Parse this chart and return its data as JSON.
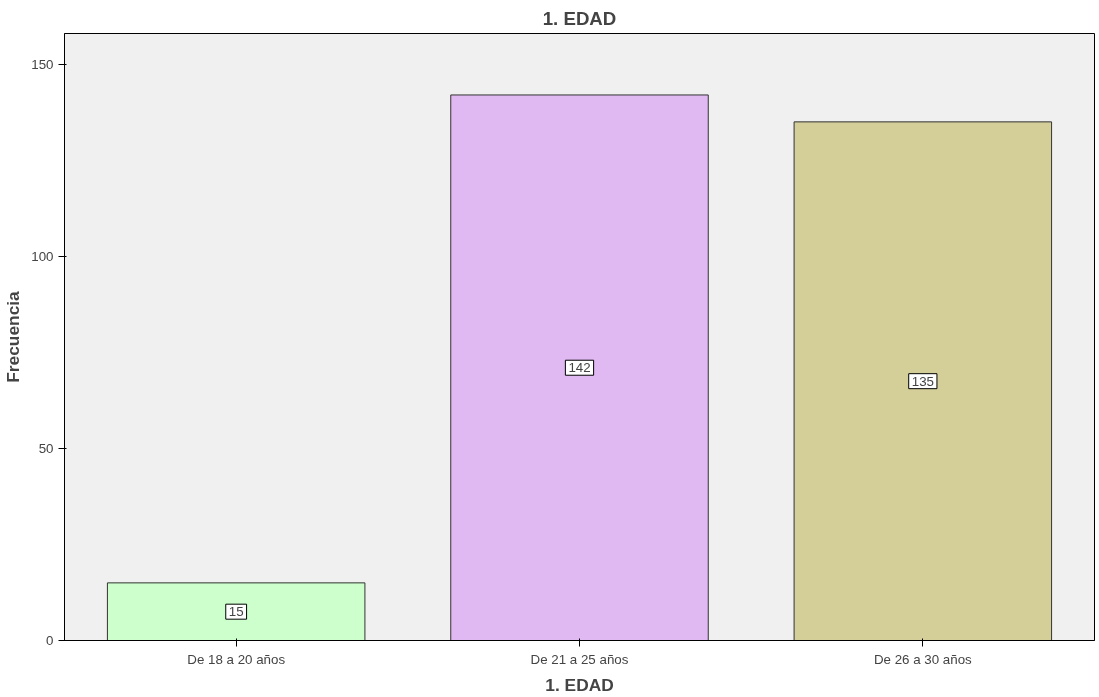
{
  "chart_data": {
    "type": "bar",
    "title": "1. EDAD",
    "xlabel": "1. EDAD",
    "ylabel": "Frecuencia",
    "categories": [
      "De 18 a 20 años",
      "De 21 a 25 años",
      "De 26 a 30 años"
    ],
    "values": [
      15,
      142,
      135
    ],
    "colors": [
      "#ccffcc",
      "#e0b8f2",
      "#d4cf99"
    ],
    "ylim": [
      0,
      158
    ],
    "yticks": [
      0,
      50,
      100,
      150
    ],
    "grid": false,
    "data_labels": true
  }
}
